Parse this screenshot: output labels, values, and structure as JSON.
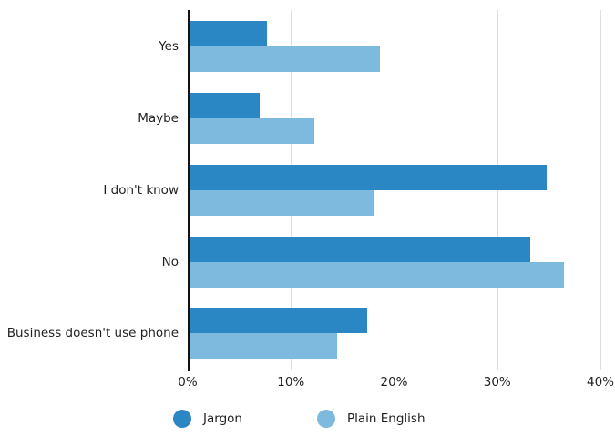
{
  "chart_data": {
    "type": "bar",
    "orientation": "horizontal",
    "title": "",
    "categories": [
      "Yes",
      "Maybe",
      "I don't know",
      "No",
      "Business doesn't use phone"
    ],
    "series": [
      {
        "name": "Jargon",
        "color": "#2b87c4",
        "values": [
          7.7,
          7.0,
          34.8,
          33.2,
          17.4
        ]
      },
      {
        "name": "Plain English",
        "color": "#7dbadd",
        "values": [
          18.6,
          12.3,
          18.0,
          36.5,
          14.5
        ]
      }
    ],
    "value_unit": "%",
    "xlim": [
      0,
      40
    ],
    "x_ticks": [
      {
        "value": 0,
        "label": "0%"
      },
      {
        "value": 10,
        "label": "10%"
      },
      {
        "value": 20,
        "label": "20%"
      },
      {
        "value": 30,
        "label": "30%"
      },
      {
        "value": 40,
        "label": "40%"
      }
    ],
    "grid": "vertical",
    "legend_position": "bottom"
  }
}
